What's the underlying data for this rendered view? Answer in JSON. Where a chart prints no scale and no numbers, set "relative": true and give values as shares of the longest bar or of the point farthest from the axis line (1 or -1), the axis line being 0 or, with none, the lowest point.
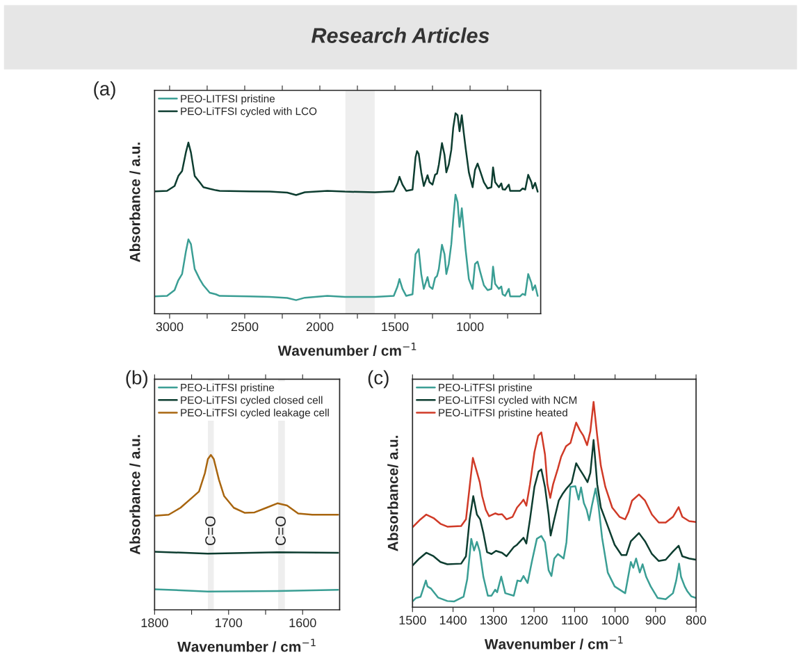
{
  "chart_data": [
    {
      "type": "other",
      "title": "Research Articles"
    },
    {
      "type": "line",
      "relative": true,
      "xlabel": "Wavenumber / cm$^{−1}$",
      "ylabel": "Absorbance / a.u.",
      "annotations": [
        "(a)"
      ],
      "legend": "top left",
      "grid": false,
      "xlim": [
        3100,
        530
      ],
      "xticks": [
        3000,
        {
          "value": 2750,
          "label": null
        },
        2500,
        {
          "value": 2250,
          "label": null
        },
        2000,
        {
          "value": 1750,
          "label": null
        },
        1500,
        {
          "value": 1250,
          "label": null
        },
        1000,
        {
          "value": 750,
          "label": null
        }
      ],
      "bands": [
        {
          "axis": "x",
          "from": 1830,
          "to": 1635,
          "color": "#eeeeee"
        }
      ],
      "series": [
        {
          "name": "PEO-LITFSI pristine",
          "color": "#3a9e94",
          "x": [
            3100,
            3017,
            2967,
            2942,
            2917,
            2892,
            2875,
            2858,
            2833,
            2800,
            2775,
            2733,
            2692,
            2667,
            2467,
            2333,
            2217,
            2158,
            2100,
            1950,
            1833,
            1633,
            1508,
            1483,
            1470,
            1450,
            1425,
            1383,
            1363,
            1353,
            1342,
            1325,
            1308,
            1283,
            1270,
            1250,
            1233,
            1220,
            1208,
            1187,
            1170,
            1158,
            1142,
            1125,
            1112,
            1097,
            1083,
            1070,
            1055,
            1042,
            1030,
            1008,
            983,
            967,
            950,
            933,
            908,
            883,
            858,
            847,
            833,
            808,
            792,
            783,
            767,
            742,
            733,
            667,
            650,
            633,
            613,
            592,
            583,
            567,
            550
          ],
          "values": [
            0.087,
            0.089,
            0.118,
            0.167,
            0.198,
            0.309,
            0.371,
            0.347,
            0.223,
            0.173,
            0.142,
            0.105,
            0.097,
            0.089,
            0.087,
            0.084,
            0.079,
            0.068,
            0.08,
            0.089,
            0.084,
            0.084,
            0.089,
            0.136,
            0.173,
            0.124,
            0.089,
            0.097,
            0.297,
            0.309,
            0.322,
            0.198,
            0.124,
            0.183,
            0.136,
            0.124,
            0.179,
            0.188,
            0.223,
            0.344,
            0.297,
            0.198,
            0.248,
            0.347,
            0.47,
            0.594,
            0.557,
            0.433,
            0.526,
            0.421,
            0.322,
            0.173,
            0.124,
            0.248,
            0.26,
            0.21,
            0.142,
            0.118,
            0.124,
            0.235,
            0.149,
            0.124,
            0.136,
            0.097,
            0.089,
            0.124,
            0.087,
            0.087,
            0.099,
            0.093,
            0.198,
            0.154,
            0.118,
            0.142,
            0.089
          ]
        },
        {
          "name": "PEO-LiTFSI cycled with LCO",
          "color": "#0d3d30",
          "x": [
            3100,
            3017,
            2967,
            2942,
            2917,
            2892,
            2875,
            2858,
            2833,
            2800,
            2775,
            2733,
            2692,
            2667,
            2467,
            2333,
            2217,
            2158,
            2100,
            1950,
            1833,
            1633,
            1508,
            1483,
            1470,
            1450,
            1425,
            1383,
            1363,
            1353,
            1342,
            1325,
            1308,
            1283,
            1270,
            1250,
            1233,
            1220,
            1208,
            1187,
            1170,
            1158,
            1142,
            1125,
            1112,
            1097,
            1083,
            1070,
            1055,
            1042,
            1030,
            1008,
            983,
            967,
            950,
            933,
            908,
            883,
            858,
            847,
            833,
            808,
            792,
            783,
            767,
            742,
            733,
            667,
            650,
            633,
            613,
            592,
            583,
            567,
            550
          ],
          "values": [
            0.61,
            0.613,
            0.637,
            0.687,
            0.712,
            0.804,
            0.854,
            0.804,
            0.687,
            0.656,
            0.631,
            0.623,
            0.616,
            0.613,
            0.61,
            0.609,
            0.604,
            0.592,
            0.606,
            0.613,
            0.609,
            0.606,
            0.61,
            0.65,
            0.683,
            0.644,
            0.613,
            0.619,
            0.78,
            0.811,
            0.798,
            0.705,
            0.637,
            0.691,
            0.656,
            0.644,
            0.693,
            0.699,
            0.743,
            0.851,
            0.792,
            0.705,
            0.743,
            0.817,
            0.928,
            1.0,
            0.99,
            0.91,
            0.99,
            0.903,
            0.829,
            0.705,
            0.631,
            0.718,
            0.749,
            0.712,
            0.656,
            0.625,
            0.631,
            0.73,
            0.656,
            0.631,
            0.65,
            0.621,
            0.619,
            0.644,
            0.613,
            0.613,
            0.625,
            0.619,
            0.693,
            0.656,
            0.625,
            0.653,
            0.609
          ]
        }
      ]
    },
    {
      "type": "line",
      "relative": true,
      "xlabel": "Wavenumber / cm$^{−1}$",
      "ylabel": "Absorbance / a.u.",
      "annotations": [
        "(b)",
        {
          "text": "C=O",
          "x": 1723,
          "y": 0.51
        },
        {
          "text": "C=O",
          "x": 1628,
          "y": 0.51
        }
      ],
      "legend": "top left",
      "grid": false,
      "xlim": [
        1800,
        1550
      ],
      "xticks": [
        1800,
        {
          "value": 1750,
          "label": null
        },
        1700,
        {
          "value": 1650,
          "label": null
        },
        1600
      ],
      "bands": [
        {
          "axis": "x",
          "from": 1728,
          "to": 1720,
          "color": "#eeeeee"
        },
        {
          "axis": "x",
          "from": 1633,
          "to": 1624,
          "color": "#eeeeee"
        }
      ],
      "series": [
        {
          "name": "PEO-LiTFSI pristine",
          "color": "#3a9e94",
          "x": [
            1800,
            1728,
            1634,
            1552
          ],
          "values": [
            0.133,
            0.118,
            0.121,
            0.129
          ]
        },
        {
          "name": "PEO-LiTFSI cycled closed cell",
          "color": "#0d3d30",
          "x": [
            1800,
            1728,
            1634,
            1552
          ],
          "values": [
            0.375,
            0.363,
            0.372,
            0.368
          ]
        },
        {
          "name": "PEO-LiTFSI cycled leakage cell",
          "color": "#a8650f",
          "x": [
            1800,
            1781,
            1765,
            1749,
            1740,
            1732,
            1728,
            1724,
            1720,
            1713,
            1706,
            1693,
            1678,
            1665,
            1649,
            1634,
            1621,
            1606,
            1587,
            1552
          ],
          "values": [
            0.607,
            0.614,
            0.659,
            0.726,
            0.764,
            0.883,
            0.973,
            1.0,
            0.973,
            0.839,
            0.734,
            0.659,
            0.626,
            0.629,
            0.659,
            0.688,
            0.674,
            0.622,
            0.614,
            0.614
          ]
        }
      ]
    },
    {
      "type": "line",
      "relative": true,
      "xlabel": "Wavenumber / cm$^{−1}$",
      "ylabel": "Absorbance/ a.u.",
      "annotations": [
        "(c)"
      ],
      "legend": "top left",
      "grid": false,
      "xlim": [
        1500,
        800
      ],
      "xticks": [
        1500,
        1400,
        1300,
        1200,
        1100,
        1000,
        900,
        800
      ],
      "series": [
        {
          "name": "PEO-LiTFSI pristine",
          "color": "#3a9e94",
          "x": [
            1500,
            1491,
            1480,
            1467,
            1463,
            1454,
            1437,
            1414,
            1397,
            1374,
            1365,
            1355,
            1348,
            1341,
            1334,
            1325,
            1314,
            1305,
            1296,
            1291,
            1281,
            1271,
            1250,
            1241,
            1233,
            1226,
            1216,
            1205,
            1193,
            1182,
            1173,
            1164,
            1157,
            1150,
            1141,
            1127,
            1120,
            1110,
            1098,
            1090,
            1084,
            1077,
            1070,
            1064,
            1057,
            1048,
            1041,
            1032,
            1018,
            1001,
            975,
            961,
            955,
            948,
            939,
            932,
            923,
            912,
            895,
            875,
            857,
            849,
            842,
            837,
            828,
            822,
            812,
            800
          ],
          "values": [
            0.028,
            0.045,
            0.051,
            0.13,
            0.101,
            0.09,
            0.047,
            0.03,
            0.028,
            0.051,
            0.135,
            0.333,
            0.276,
            0.318,
            0.271,
            0.147,
            0.056,
            0.056,
            0.085,
            0.073,
            0.149,
            0.068,
            0.056,
            0.13,
            0.126,
            0.152,
            0.118,
            0.225,
            0.333,
            0.347,
            0.316,
            0.18,
            0.152,
            0.237,
            0.259,
            0.237,
            0.316,
            0.586,
            0.589,
            0.524,
            0.583,
            0.507,
            0.474,
            0.423,
            0.496,
            0.578,
            0.496,
            0.338,
            0.169,
            0.101,
            0.068,
            0.22,
            0.192,
            0.237,
            0.169,
            0.209,
            0.147,
            0.101,
            0.045,
            0.039,
            0.068,
            0.13,
            0.212,
            0.147,
            0.101,
            0.079,
            0.053,
            0.045
          ]
        },
        {
          "name": "PEO-LiTFSI cycled with NCM",
          "color": "#0d3d30",
          "x": [
            1500,
            1483,
            1466,
            1448,
            1431,
            1414,
            1380,
            1368,
            1359,
            1350,
            1341,
            1333,
            1325,
            1316,
            1305,
            1294,
            1279,
            1268,
            1250,
            1242,
            1226,
            1219,
            1210,
            1199,
            1189,
            1182,
            1173,
            1164,
            1159,
            1150,
            1139,
            1130,
            1121,
            1107,
            1096,
            1087,
            1078,
            1068,
            1061,
            1053,
            1044,
            1035,
            1018,
            1001,
            984,
            972,
            961,
            941,
            926,
            909,
            892,
            875,
            857,
            843,
            834,
            817,
            800
          ],
          "values": [
            0.203,
            0.237,
            0.265,
            0.248,
            0.22,
            0.209,
            0.212,
            0.248,
            0.428,
            0.541,
            0.451,
            0.428,
            0.361,
            0.268,
            0.259,
            0.274,
            0.265,
            0.248,
            0.293,
            0.304,
            0.338,
            0.31,
            0.428,
            0.586,
            0.66,
            0.671,
            0.586,
            0.451,
            0.349,
            0.428,
            0.519,
            0.55,
            0.575,
            0.607,
            0.701,
            0.671,
            0.643,
            0.609,
            0.654,
            0.814,
            0.598,
            0.485,
            0.395,
            0.304,
            0.254,
            0.254,
            0.321,
            0.361,
            0.321,
            0.259,
            0.225,
            0.231,
            0.271,
            0.299,
            0.248,
            0.237,
            0.231
          ]
        },
        {
          "name": "PEO-LiTFSI pristine heated",
          "color": "#d03a27",
          "x": [
            1500,
            1483,
            1466,
            1448,
            1431,
            1414,
            1380,
            1368,
            1359,
            1351,
            1342,
            1334,
            1328,
            1319,
            1311,
            1296,
            1288,
            1279,
            1268,
            1253,
            1242,
            1230,
            1226,
            1219,
            1210,
            1199,
            1190,
            1182,
            1173,
            1167,
            1160,
            1153,
            1141,
            1133,
            1121,
            1110,
            1102,
            1096,
            1087,
            1078,
            1069,
            1061,
            1053,
            1044,
            1035,
            1024,
            1007,
            989,
            975,
            967,
            958,
            941,
            926,
            909,
            892,
            875,
            857,
            843,
            834,
            817,
            800
          ],
          "values": [
            0.389,
            0.423,
            0.451,
            0.434,
            0.406,
            0.392,
            0.395,
            0.428,
            0.586,
            0.727,
            0.665,
            0.609,
            0.541,
            0.474,
            0.443,
            0.457,
            0.451,
            0.453,
            0.428,
            0.44,
            0.485,
            0.513,
            0.524,
            0.494,
            0.598,
            0.755,
            0.834,
            0.851,
            0.744,
            0.598,
            0.532,
            0.598,
            0.676,
            0.733,
            0.784,
            0.8,
            0.857,
            0.899,
            0.862,
            0.834,
            0.789,
            0.857,
            1.0,
            0.834,
            0.688,
            0.586,
            0.485,
            0.44,
            0.428,
            0.462,
            0.519,
            0.549,
            0.519,
            0.451,
            0.412,
            0.412,
            0.44,
            0.487,
            0.44,
            0.419,
            0.415
          ]
        }
      ]
    }
  ]
}
